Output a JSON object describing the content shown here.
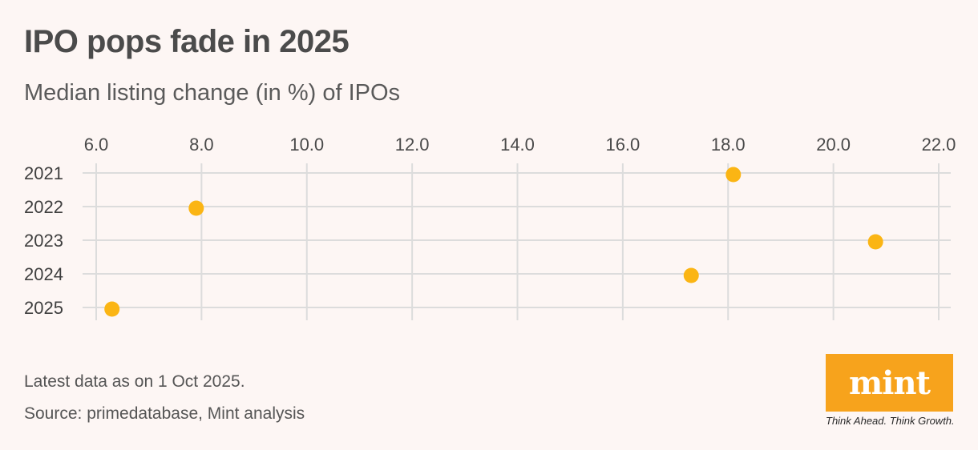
{
  "title": "IPO pops fade in 2025",
  "subtitle": "Median listing change (in %) of IPOs",
  "notes": {
    "latest": "Latest data as on 1 Oct 2025.",
    "source": "Source: primedatabase, Mint analysis"
  },
  "logo": {
    "text": "mint",
    "tagline": "Think Ahead. Think Growth.",
    "color": "#f7a31c"
  },
  "chart_data": {
    "type": "scatter",
    "categories": [
      "2021",
      "2022",
      "2023",
      "2024",
      "2025"
    ],
    "values": [
      18.1,
      7.9,
      20.8,
      17.3,
      6.3
    ],
    "xlim": [
      6.0,
      22.0
    ],
    "xticks": [
      "6.0",
      "8.0",
      "10.0",
      "12.0",
      "14.0",
      "16.0",
      "18.0",
      "20.0",
      "22.0"
    ],
    "xaxis_position": "top",
    "grid": true,
    "marker_color": "#fbb514",
    "grid_color": "#dcdcdc"
  }
}
